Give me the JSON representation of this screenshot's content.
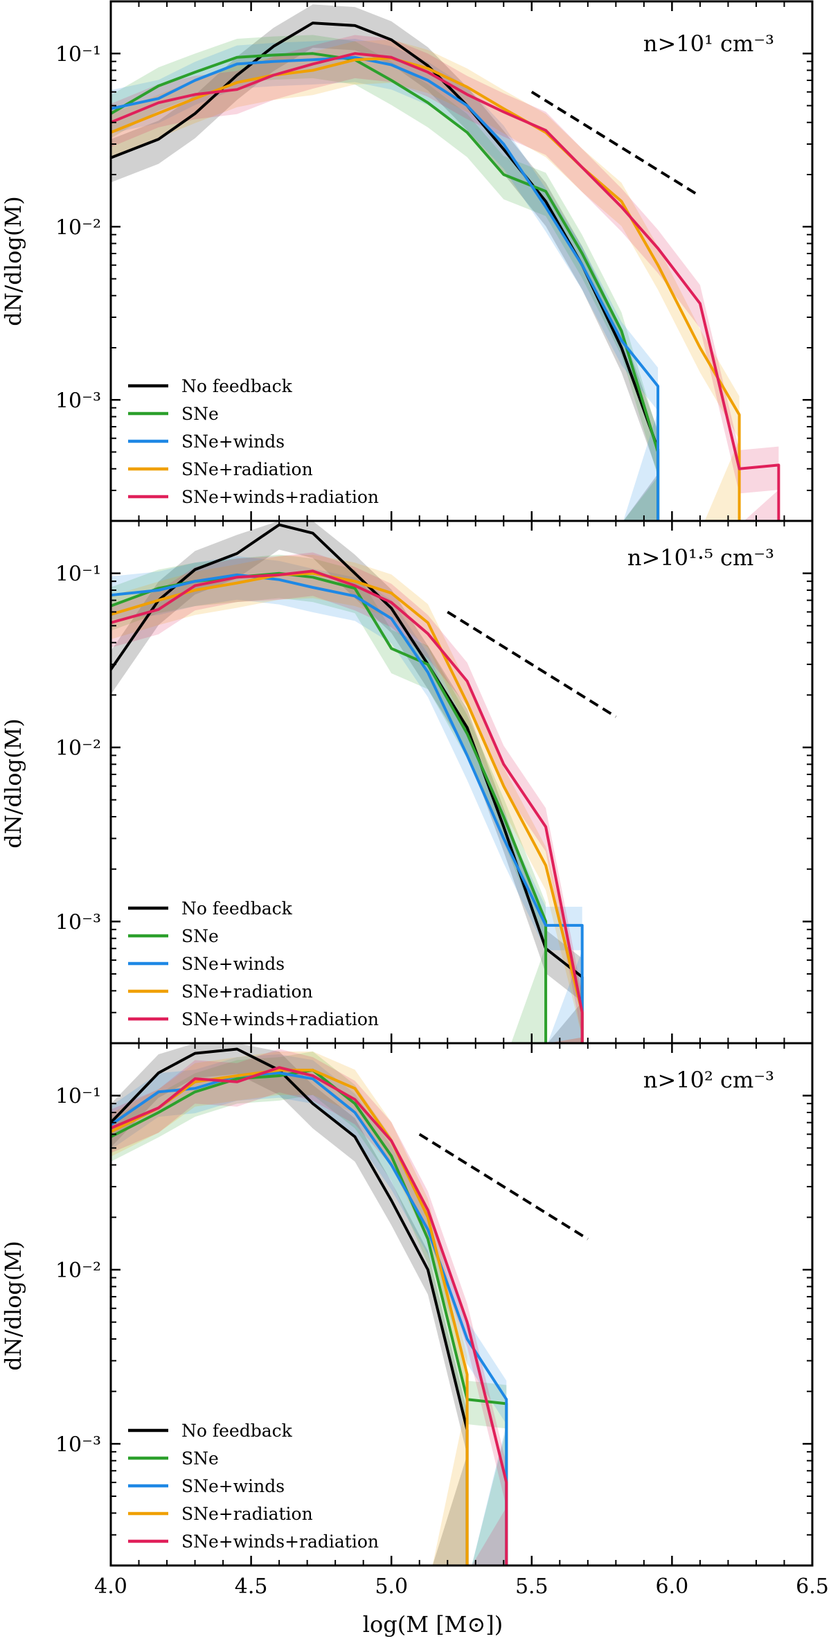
{
  "chart_data": [
    {
      "type": "line",
      "panel": "top",
      "annotation": "n>10¹ cm⁻³",
      "ylabel": "dN/dlog(M)",
      "xlabel": "",
      "xlim": [
        4.0,
        6.5
      ],
      "ylim": [
        0.0002,
        0.2
      ],
      "yscale": "log",
      "ytick_labels": [
        "10⁻¹",
        "10⁻²",
        "10⁻³"
      ],
      "legend": {
        "placement": "lower-left",
        "entries": [
          "No feedback",
          "SNe",
          "SNe+winds",
          "SNe+radiation",
          "SNe+winds+radiation"
        ]
      },
      "reference_line": {
        "style": "dashed",
        "x": [
          5.5,
          6.1
        ],
        "y": [
          0.06,
          0.015
        ]
      },
      "series": [
        {
          "name": "No feedback",
          "color": "#000000",
          "x": [
            4.0,
            4.17,
            4.3,
            4.45,
            4.58,
            4.72,
            4.87,
            5.0,
            5.13,
            5.27,
            5.4,
            5.55,
            5.68,
            5.82,
            5.95
          ],
          "y": [
            0.025,
            0.032,
            0.045,
            0.075,
            0.11,
            0.15,
            0.145,
            0.12,
            0.085,
            0.05,
            0.028,
            0.014,
            0.006,
            0.002,
            0.00052
          ]
        },
        {
          "name": "SNe",
          "color": "#2ca02c",
          "x": [
            4.0,
            4.17,
            4.3,
            4.45,
            4.58,
            4.72,
            4.87,
            5.0,
            5.13,
            5.27,
            5.4,
            5.55,
            5.68,
            5.82,
            5.95
          ],
          "y": [
            0.045,
            0.065,
            0.078,
            0.095,
            0.098,
            0.1,
            0.092,
            0.07,
            0.052,
            0.035,
            0.02,
            0.016,
            0.007,
            0.0025,
            0.0005
          ]
        },
        {
          "name": "SNe+winds",
          "color": "#1e88e5",
          "x": [
            4.0,
            4.17,
            4.3,
            4.45,
            4.58,
            4.72,
            4.87,
            5.0,
            5.13,
            5.27,
            5.4,
            5.55,
            5.68,
            5.82,
            5.95
          ],
          "y": [
            0.048,
            0.055,
            0.07,
            0.087,
            0.09,
            0.092,
            0.095,
            0.086,
            0.07,
            0.05,
            0.03,
            0.013,
            0.006,
            0.0022,
            0.0012
          ]
        },
        {
          "name": "SNe+radiation",
          "color": "#f0a000",
          "x": [
            4.0,
            4.3,
            4.45,
            4.58,
            4.72,
            4.87,
            5.0,
            5.13,
            5.27,
            5.4,
            5.55,
            5.68,
            5.82,
            5.95,
            6.1,
            6.24
          ],
          "y": [
            0.035,
            0.055,
            0.068,
            0.075,
            0.08,
            0.092,
            0.094,
            0.082,
            0.064,
            0.048,
            0.035,
            0.022,
            0.014,
            0.006,
            0.002,
            0.00082
          ]
        },
        {
          "name": "SNe+winds+radiation",
          "color": "#e0205a",
          "x": [
            4.0,
            4.17,
            4.3,
            4.45,
            4.58,
            4.72,
            4.87,
            5.0,
            5.13,
            5.27,
            5.4,
            5.55,
            5.68,
            5.82,
            5.95,
            6.1,
            6.24,
            6.38
          ],
          "y": [
            0.04,
            0.052,
            0.058,
            0.062,
            0.075,
            0.087,
            0.1,
            0.095,
            0.078,
            0.058,
            0.046,
            0.036,
            0.022,
            0.013,
            0.0075,
            0.0036,
            0.0004,
            0.00042
          ]
        }
      ]
    },
    {
      "type": "line",
      "panel": "middle",
      "annotation": "n>10¹·⁵ cm⁻³",
      "ylabel": "dN/dlog(M)",
      "xlabel": "",
      "xlim": [
        4.0,
        6.5
      ],
      "ylim": [
        0.0002,
        0.2
      ],
      "yscale": "log",
      "ytick_labels": [
        "10⁻¹",
        "10⁻²",
        "10⁻³"
      ],
      "legend": {
        "placement": "lower-left",
        "entries": [
          "No feedback",
          "SNe",
          "SNe+winds",
          "SNe+radiation",
          "SNe+winds+radiation"
        ]
      },
      "reference_line": {
        "style": "dashed",
        "x": [
          5.2,
          5.8
        ],
        "y": [
          0.06,
          0.015
        ]
      },
      "series": [
        {
          "name": "No feedback",
          "color": "#000000",
          "x": [
            4.0,
            4.17,
            4.3,
            4.45,
            4.6,
            4.72,
            4.87,
            5.0,
            5.13,
            5.27,
            5.4,
            5.55,
            5.68
          ],
          "y": [
            0.028,
            0.07,
            0.105,
            0.13,
            0.19,
            0.17,
            0.1,
            0.063,
            0.03,
            0.013,
            0.0035,
            0.0007,
            0.00048
          ]
        },
        {
          "name": "SNe",
          "color": "#2ca02c",
          "x": [
            4.0,
            4.17,
            4.3,
            4.45,
            4.6,
            4.72,
            4.87,
            5.0,
            5.13,
            5.27,
            5.4,
            5.55
          ],
          "y": [
            0.065,
            0.082,
            0.09,
            0.095,
            0.1,
            0.095,
            0.082,
            0.037,
            0.03,
            0.012,
            0.004,
            0.001
          ]
        },
        {
          "name": "SNe+winds",
          "color": "#1e88e5",
          "x": [
            4.0,
            4.17,
            4.3,
            4.45,
            4.6,
            4.72,
            4.87,
            5.0,
            5.13,
            5.27,
            5.4,
            5.55,
            5.68
          ],
          "y": [
            0.075,
            0.08,
            0.09,
            0.098,
            0.092,
            0.083,
            0.074,
            0.055,
            0.027,
            0.009,
            0.003,
            0.00095,
            0.00095
          ]
        },
        {
          "name": "SNe+radiation",
          "color": "#f0a000",
          "x": [
            4.0,
            4.17,
            4.3,
            4.45,
            4.6,
            4.72,
            4.87,
            5.0,
            5.13,
            5.27,
            5.4,
            5.55,
            5.68
          ],
          "y": [
            0.058,
            0.07,
            0.08,
            0.088,
            0.098,
            0.1,
            0.09,
            0.077,
            0.052,
            0.018,
            0.006,
            0.0021,
            0.0003
          ]
        },
        {
          "name": "SNe+winds+radiation",
          "color": "#e0205a",
          "x": [
            4.0,
            4.17,
            4.3,
            4.45,
            4.6,
            4.72,
            4.87,
            5.0,
            5.13,
            5.27,
            5.4,
            5.55,
            5.68
          ],
          "y": [
            0.052,
            0.062,
            0.085,
            0.095,
            0.098,
            0.103,
            0.085,
            0.068,
            0.045,
            0.024,
            0.008,
            0.0035,
            0.0003
          ]
        }
      ]
    },
    {
      "type": "line",
      "panel": "bottom",
      "annotation": "n>10² cm⁻³",
      "ylabel": "dN/dlog(M)",
      "xlabel": "log(M [M⊙])",
      "xlim": [
        4.0,
        6.5
      ],
      "xticks": [
        4.0,
        4.5,
        5.0,
        5.5,
        6.0,
        6.5
      ],
      "xtick_labels": [
        "4.0",
        "4.5",
        "5.0",
        "5.5",
        "6.0",
        "6.5"
      ],
      "ylim": [
        0.0002,
        0.2
      ],
      "yscale": "log",
      "ytick_labels": [
        "10⁻¹",
        "10⁻²",
        "10⁻³"
      ],
      "legend": {
        "placement": "lower-left",
        "entries": [
          "No feedback",
          "SNe",
          "SNe+winds",
          "SNe+radiation",
          "SNe+winds+radiation"
        ]
      },
      "reference_line": {
        "style": "dashed",
        "x": [
          5.1,
          5.7
        ],
        "y": [
          0.06,
          0.015
        ]
      },
      "series": [
        {
          "name": "No feedback",
          "color": "#000000",
          "x": [
            4.0,
            4.17,
            4.3,
            4.45,
            4.6,
            4.72,
            4.87,
            5.0,
            5.13,
            5.27
          ],
          "y": [
            0.07,
            0.135,
            0.175,
            0.185,
            0.14,
            0.09,
            0.058,
            0.025,
            0.01,
            0.0012
          ]
        },
        {
          "name": "SNe",
          "color": "#2ca02c",
          "x": [
            4.0,
            4.17,
            4.3,
            4.45,
            4.6,
            4.72,
            4.87,
            5.0,
            5.13,
            5.27,
            5.41
          ],
          "y": [
            0.058,
            0.08,
            0.105,
            0.125,
            0.13,
            0.14,
            0.09,
            0.045,
            0.015,
            0.0018,
            0.0017
          ]
        },
        {
          "name": "SNe+winds",
          "color": "#1e88e5",
          "x": [
            4.0,
            4.17,
            4.3,
            4.45,
            4.6,
            4.72,
            4.87,
            5.0,
            5.13,
            5.27,
            5.41
          ],
          "y": [
            0.068,
            0.105,
            0.11,
            0.13,
            0.135,
            0.125,
            0.08,
            0.04,
            0.017,
            0.004,
            0.0018
          ]
        },
        {
          "name": "SNe+radiation",
          "color": "#f0a000",
          "x": [
            4.0,
            4.17,
            4.3,
            4.45,
            4.6,
            4.72,
            4.87,
            5.0,
            5.13,
            5.27
          ],
          "y": [
            0.062,
            0.085,
            0.12,
            0.13,
            0.14,
            0.14,
            0.11,
            0.055,
            0.02,
            0.0025
          ]
        },
        {
          "name": "SNe+winds+radiation",
          "color": "#e0205a",
          "x": [
            4.0,
            4.17,
            4.3,
            4.45,
            4.6,
            4.72,
            4.87,
            5.0,
            5.13,
            5.27,
            5.41
          ],
          "y": [
            0.065,
            0.085,
            0.125,
            0.12,
            0.145,
            0.13,
            0.095,
            0.055,
            0.022,
            0.005,
            0.0006
          ]
        }
      ]
    }
  ]
}
